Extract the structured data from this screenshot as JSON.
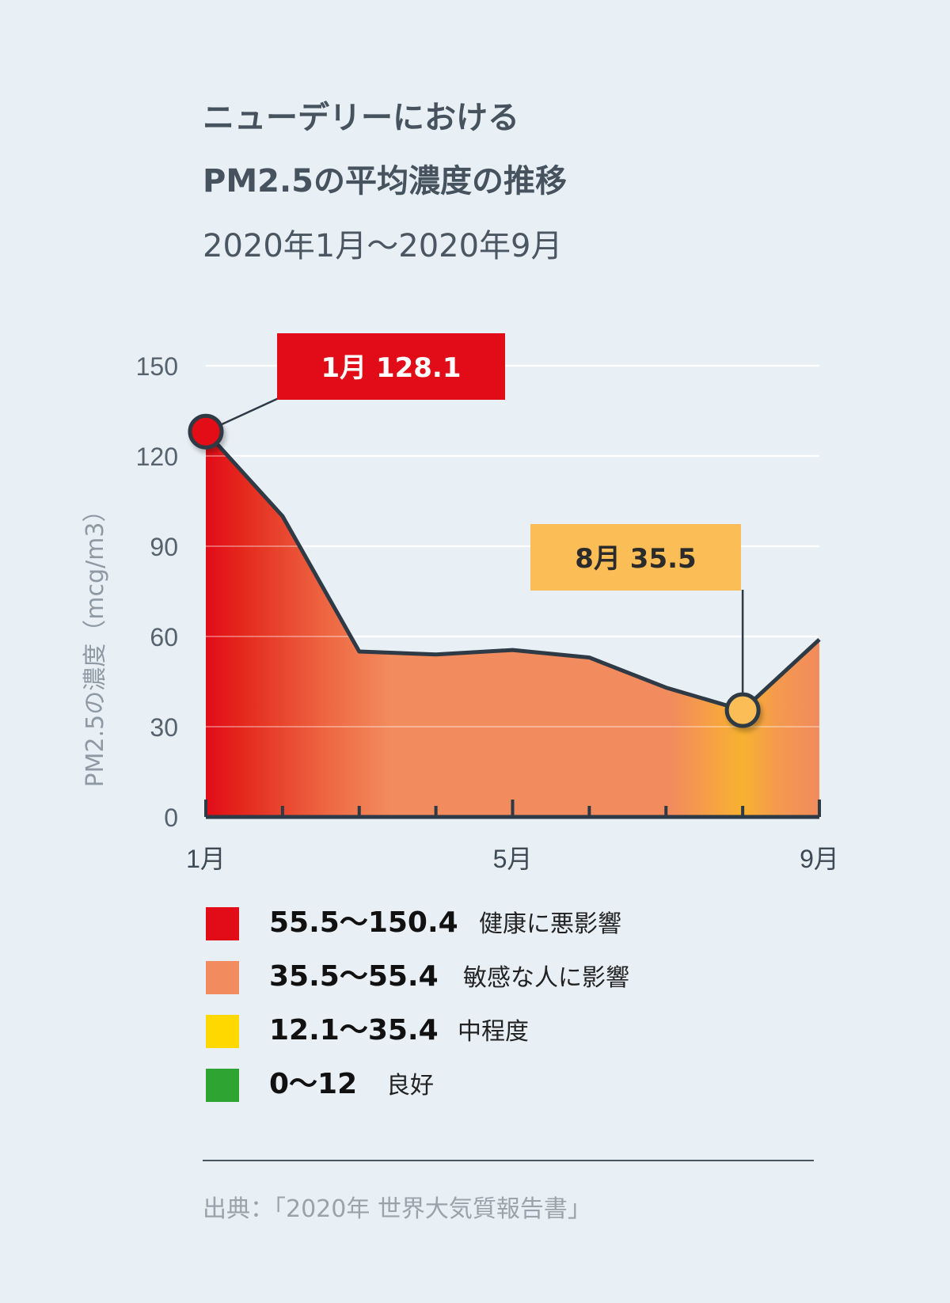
{
  "header": {
    "title_line1": "ニューデリーにおける",
    "title_line2": "PM2.5の平均濃度の推移",
    "subtitle": "2020年1月〜2020年9月"
  },
  "chart_data": {
    "type": "area",
    "x": [
      1,
      2,
      3,
      4,
      5,
      6,
      7,
      8,
      9
    ],
    "values": [
      128.1,
      100,
      55,
      54,
      55.5,
      53,
      43,
      35.5,
      59
    ],
    "xticks": [
      {
        "x": 1,
        "label": "1月"
      },
      {
        "x": 5,
        "label": "5月"
      },
      {
        "x": 9,
        "label": "9月"
      }
    ],
    "yticks": [
      0,
      30,
      60,
      90,
      120,
      150
    ],
    "ylim": [
      0,
      150
    ],
    "xlim": [
      1,
      9
    ],
    "ylabel": "PM2.5の濃度（mcg/m3）",
    "grid": true,
    "line_color": "#2e3a45",
    "annotations": [
      {
        "x": 1,
        "value": 128.1,
        "label": "1月  128.1",
        "color": "#e20b18",
        "text_color": "#ffffff"
      },
      {
        "x": 8,
        "value": 35.5,
        "label": "8月  35.5",
        "color": "#fbbe56",
        "text_color": "#2b2b2b"
      }
    ]
  },
  "legend": [
    {
      "range": "55.5〜150.4",
      "label": "健康に悪影響",
      "color": "#e20b18"
    },
    {
      "range": "35.5〜55.4",
      "label": "敏感な人に影響",
      "color": "#f28b5d"
    },
    {
      "range": "12.1〜35.4",
      "label": "中程度",
      "color": "#ffd800"
    },
    {
      "range": "0〜12",
      "label": "良好",
      "color": "#2ea533"
    }
  ],
  "source": "出典：「2020年  世界大気質報告書」"
}
